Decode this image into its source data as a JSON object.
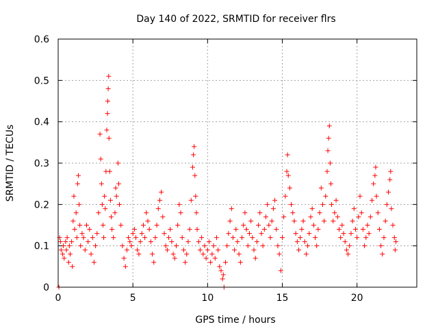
{
  "chart_data": {
    "type": "scatter",
    "title": "Day 140 of 2022, SRMTID for receiver flrs",
    "xlabel": "GPS time / hours",
    "ylabel": "SRMTID / TECUs",
    "xlim": [
      0,
      24
    ],
    "ylim": [
      0,
      0.6
    ],
    "xticks": [
      0,
      5,
      10,
      15,
      20
    ],
    "yticks": [
      0,
      0.1,
      0.2,
      0.3,
      0.4,
      0.5,
      0.6
    ],
    "xtick_labels": [
      "0",
      "5",
      "10",
      "15",
      "20"
    ],
    "ytick_labels": [
      "0",
      "0.1",
      "0.2",
      "0.3",
      "0.4",
      "0.5",
      "0.6"
    ],
    "grid": true,
    "marker": "plus",
    "color": "#ff0000",
    "series": [
      {
        "name": "SRMTID",
        "points": [
          [
            0.05,
            0.0
          ],
          [
            0.1,
            0.12
          ],
          [
            0.15,
            0.11
          ],
          [
            0.2,
            0.09
          ],
          [
            0.3,
            0.08
          ],
          [
            0.35,
            0.1
          ],
          [
            0.4,
            0.07
          ],
          [
            0.5,
            0.11
          ],
          [
            0.55,
            0.09
          ],
          [
            0.6,
            0.12
          ],
          [
            0.7,
            0.06
          ],
          [
            0.75,
            0.1
          ],
          [
            0.8,
            0.08
          ],
          [
            0.9,
            0.11
          ],
          [
            0.95,
            0.05
          ],
          [
            1.0,
            0.16
          ],
          [
            1.05,
            0.22
          ],
          [
            1.1,
            0.14
          ],
          [
            1.2,
            0.18
          ],
          [
            1.25,
            0.12
          ],
          [
            1.3,
            0.25
          ],
          [
            1.35,
            0.27
          ],
          [
            1.4,
            0.2
          ],
          [
            1.45,
            0.15
          ],
          [
            1.5,
            0.1
          ],
          [
            1.6,
            0.13
          ],
          [
            1.7,
            0.12
          ],
          [
            1.8,
            0.09
          ],
          [
            1.9,
            0.15
          ],
          [
            2.0,
            0.11
          ],
          [
            2.1,
            0.14
          ],
          [
            2.2,
            0.08
          ],
          [
            2.3,
            0.12
          ],
          [
            2.4,
            0.06
          ],
          [
            2.5,
            0.1
          ],
          [
            2.6,
            0.13
          ],
          [
            2.7,
            0.18
          ],
          [
            2.8,
            0.37
          ],
          [
            2.85,
            0.31
          ],
          [
            2.9,
            0.25
          ],
          [
            2.95,
            0.2
          ],
          [
            3.0,
            0.15
          ],
          [
            3.05,
            0.12
          ],
          [
            3.1,
            0.22
          ],
          [
            3.15,
            0.19
          ],
          [
            3.2,
            0.28
          ],
          [
            3.25,
            0.38
          ],
          [
            3.3,
            0.42
          ],
          [
            3.32,
            0.45
          ],
          [
            3.35,
            0.48
          ],
          [
            3.38,
            0.51
          ],
          [
            3.4,
            0.36
          ],
          [
            3.45,
            0.28
          ],
          [
            3.5,
            0.21
          ],
          [
            3.55,
            0.17
          ],
          [
            3.6,
            0.14
          ],
          [
            3.7,
            0.12
          ],
          [
            3.8,
            0.18
          ],
          [
            3.85,
            0.24
          ],
          [
            3.9,
            0.22
          ],
          [
            4.0,
            0.3
          ],
          [
            4.05,
            0.25
          ],
          [
            4.1,
            0.2
          ],
          [
            4.2,
            0.15
          ],
          [
            4.3,
            0.1
          ],
          [
            4.4,
            0.07
          ],
          [
            4.5,
            0.05
          ],
          [
            4.6,
            0.09
          ],
          [
            4.7,
            0.12
          ],
          [
            4.8,
            0.11
          ],
          [
            4.9,
            0.1
          ],
          [
            5.0,
            0.13
          ],
          [
            5.1,
            0.14
          ],
          [
            5.2,
            0.12
          ],
          [
            5.3,
            0.09
          ],
          [
            5.4,
            0.08
          ],
          [
            5.5,
            0.11
          ],
          [
            5.6,
            0.13
          ],
          [
            5.7,
            0.15
          ],
          [
            5.8,
            0.12
          ],
          [
            5.9,
            0.18
          ],
          [
            6.0,
            0.16
          ],
          [
            6.1,
            0.14
          ],
          [
            6.2,
            0.11
          ],
          [
            6.3,
            0.08
          ],
          [
            6.4,
            0.06
          ],
          [
            6.5,
            0.12
          ],
          [
            6.6,
            0.15
          ],
          [
            6.7,
            0.19
          ],
          [
            6.8,
            0.21
          ],
          [
            6.9,
            0.23
          ],
          [
            7.0,
            0.17
          ],
          [
            7.1,
            0.13
          ],
          [
            7.2,
            0.1
          ],
          [
            7.3,
            0.09
          ],
          [
            7.4,
            0.12
          ],
          [
            7.5,
            0.14
          ],
          [
            7.6,
            0.11
          ],
          [
            7.7,
            0.08
          ],
          [
            7.8,
            0.07
          ],
          [
            7.9,
            0.1
          ],
          [
            8.0,
            0.15
          ],
          [
            8.1,
            0.2
          ],
          [
            8.2,
            0.18
          ],
          [
            8.3,
            0.12
          ],
          [
            8.4,
            0.09
          ],
          [
            8.5,
            0.06
          ],
          [
            8.6,
            0.08
          ],
          [
            8.7,
            0.11
          ],
          [
            8.8,
            0.14
          ],
          [
            8.9,
            0.21
          ],
          [
            9.0,
            0.29
          ],
          [
            9.05,
            0.32
          ],
          [
            9.1,
            0.34
          ],
          [
            9.15,
            0.27
          ],
          [
            9.2,
            0.22
          ],
          [
            9.25,
            0.18
          ],
          [
            9.3,
            0.14
          ],
          [
            9.4,
            0.11
          ],
          [
            9.5,
            0.09
          ],
          [
            9.6,
            0.12
          ],
          [
            9.7,
            0.08
          ],
          [
            9.8,
            0.1
          ],
          [
            9.9,
            0.07
          ],
          [
            10.0,
            0.09
          ],
          [
            10.1,
            0.11
          ],
          [
            10.2,
            0.06
          ],
          [
            10.3,
            0.08
          ],
          [
            10.4,
            0.1
          ],
          [
            10.5,
            0.07
          ],
          [
            10.6,
            0.12
          ],
          [
            10.7,
            0.09
          ],
          [
            10.8,
            0.05
          ],
          [
            10.9,
            0.04
          ],
          [
            11.0,
            0.02
          ],
          [
            11.05,
            0.03
          ],
          [
            11.1,
            0.0
          ],
          [
            11.2,
            0.06
          ],
          [
            11.3,
            0.1
          ],
          [
            11.4,
            0.13
          ],
          [
            11.5,
            0.16
          ],
          [
            11.6,
            0.19
          ],
          [
            11.7,
            0.12
          ],
          [
            11.8,
            0.09
          ],
          [
            11.9,
            0.14
          ],
          [
            12.0,
            0.11
          ],
          [
            12.1,
            0.08
          ],
          [
            12.2,
            0.06
          ],
          [
            12.3,
            0.12
          ],
          [
            12.4,
            0.15
          ],
          [
            12.5,
            0.18
          ],
          [
            12.6,
            0.14
          ],
          [
            12.7,
            0.1
          ],
          [
            12.8,
            0.13
          ],
          [
            12.9,
            0.16
          ],
          [
            13.0,
            0.12
          ],
          [
            13.1,
            0.09
          ],
          [
            13.2,
            0.07
          ],
          [
            13.3,
            0.11
          ],
          [
            13.4,
            0.15
          ],
          [
            13.5,
            0.18
          ],
          [
            13.6,
            0.13
          ],
          [
            13.7,
            0.1
          ],
          [
            13.8,
            0.14
          ],
          [
            13.9,
            0.17
          ],
          [
            14.0,
            0.2
          ],
          [
            14.1,
            0.15
          ],
          [
            14.2,
            0.12
          ],
          [
            14.3,
            0.16
          ],
          [
            14.4,
            0.19
          ],
          [
            14.5,
            0.21
          ],
          [
            14.6,
            0.14
          ],
          [
            14.7,
            0.1
          ],
          [
            14.8,
            0.08
          ],
          [
            14.9,
            0.04
          ],
          [
            15.0,
            0.12
          ],
          [
            15.1,
            0.17
          ],
          [
            15.2,
            0.22
          ],
          [
            15.3,
            0.28
          ],
          [
            15.35,
            0.32
          ],
          [
            15.4,
            0.27
          ],
          [
            15.5,
            0.24
          ],
          [
            15.6,
            0.2
          ],
          [
            15.7,
            0.18
          ],
          [
            15.8,
            0.16
          ],
          [
            15.9,
            0.13
          ],
          [
            16.0,
            0.11
          ],
          [
            16.1,
            0.09
          ],
          [
            16.2,
            0.12
          ],
          [
            16.3,
            0.14
          ],
          [
            16.4,
            0.16
          ],
          [
            16.5,
            0.11
          ],
          [
            16.6,
            0.08
          ],
          [
            16.7,
            0.1
          ],
          [
            16.8,
            0.13
          ],
          [
            16.9,
            0.17
          ],
          [
            17.0,
            0.19
          ],
          [
            17.1,
            0.15
          ],
          [
            17.2,
            0.12
          ],
          [
            17.3,
            0.1
          ],
          [
            17.4,
            0.14
          ],
          [
            17.5,
            0.18
          ],
          [
            17.6,
            0.24
          ],
          [
            17.7,
            0.2
          ],
          [
            17.8,
            0.16
          ],
          [
            17.9,
            0.22
          ],
          [
            18.0,
            0.28
          ],
          [
            18.05,
            0.33
          ],
          [
            18.1,
            0.36
          ],
          [
            18.15,
            0.39
          ],
          [
            18.2,
            0.3
          ],
          [
            18.25,
            0.25
          ],
          [
            18.3,
            0.2
          ],
          [
            18.4,
            0.16
          ],
          [
            18.5,
            0.18
          ],
          [
            18.6,
            0.21
          ],
          [
            18.7,
            0.17
          ],
          [
            18.8,
            0.14
          ],
          [
            18.9,
            0.12
          ],
          [
            19.0,
            0.15
          ],
          [
            19.1,
            0.13
          ],
          [
            19.2,
            0.11
          ],
          [
            19.3,
            0.09
          ],
          [
            19.4,
            0.08
          ],
          [
            19.5,
            0.1
          ],
          [
            19.6,
            0.13
          ],
          [
            19.7,
            0.16
          ],
          [
            19.8,
            0.19
          ],
          [
            19.9,
            0.14
          ],
          [
            20.0,
            0.12
          ],
          [
            20.1,
            0.17
          ],
          [
            20.2,
            0.22
          ],
          [
            20.3,
            0.18
          ],
          [
            20.4,
            0.14
          ],
          [
            20.5,
            0.1
          ],
          [
            20.6,
            0.12
          ],
          [
            20.7,
            0.15
          ],
          [
            20.8,
            0.13
          ],
          [
            20.9,
            0.17
          ],
          [
            21.0,
            0.21
          ],
          [
            21.1,
            0.25
          ],
          [
            21.2,
            0.27
          ],
          [
            21.25,
            0.29
          ],
          [
            21.3,
            0.22
          ],
          [
            21.4,
            0.18
          ],
          [
            21.5,
            0.14
          ],
          [
            21.6,
            0.1
          ],
          [
            21.7,
            0.08
          ],
          [
            21.8,
            0.12
          ],
          [
            21.9,
            0.16
          ],
          [
            22.0,
            0.2
          ],
          [
            22.1,
            0.23
          ],
          [
            22.2,
            0.26
          ],
          [
            22.25,
            0.28
          ],
          [
            22.3,
            0.19
          ],
          [
            22.4,
            0.15
          ],
          [
            22.5,
            0.12
          ],
          [
            22.55,
            0.09
          ],
          [
            22.6,
            0.11
          ]
        ]
      }
    ]
  }
}
